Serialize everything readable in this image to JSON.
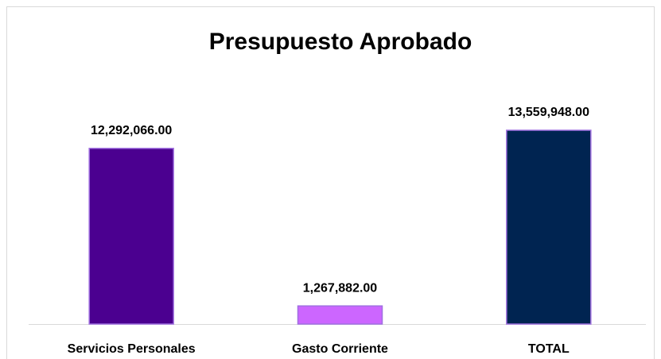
{
  "chart_data": {
    "type": "bar",
    "title": "Presupuesto Aprobado",
    "categories": [
      "Servicios Personales",
      "Gasto Corriente",
      "TOTAL"
    ],
    "values": [
      12292066,
      1267882,
      13559948
    ],
    "value_labels": [
      "12,292,066.00",
      "1,267,882.00",
      "13,559,948.00"
    ],
    "colors": [
      "#4b0090",
      "#cc66ff",
      "#002451"
    ]
  }
}
